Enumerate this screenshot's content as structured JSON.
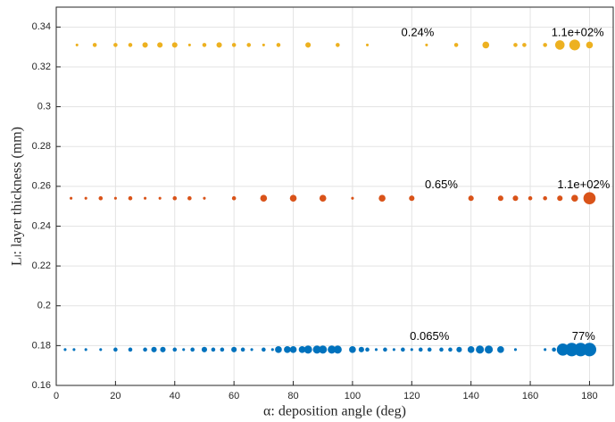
{
  "chart_data": {
    "type": "scatter",
    "xlabel": "α: deposition angle (deg)",
    "ylabel": "Lₗ: layer thickness (mm)",
    "xlim": [
      0,
      188
    ],
    "xticks": [
      0,
      20,
      40,
      60,
      80,
      100,
      120,
      140,
      160,
      180
    ],
    "ylim": [
      0.16,
      0.35
    ],
    "yticks": [
      0.16,
      0.18,
      0.2,
      0.22,
      0.24,
      0.26,
      0.28,
      0.3,
      0.32,
      0.34
    ],
    "grid": true,
    "series": [
      {
        "color": "#edb120",
        "x": [
          7,
          13,
          20,
          25,
          30,
          35,
          40,
          45,
          50,
          55,
          60,
          65,
          70,
          75,
          85,
          95,
          105,
          125,
          135,
          145,
          155,
          158,
          165,
          170,
          175,
          180
        ],
        "y": [
          0.331,
          0.331,
          0.331,
          0.331,
          0.331,
          0.331,
          0.331,
          0.331,
          0.331,
          0.331,
          0.331,
          0.331,
          0.331,
          0.331,
          0.331,
          0.331,
          0.331,
          0.331,
          0.331,
          0.331,
          0.331,
          0.331,
          0.331,
          0.331,
          0.331,
          0.331
        ],
        "sizes": [
          1,
          2,
          2,
          2,
          3,
          3,
          3,
          1,
          2,
          3,
          2,
          2,
          1,
          2,
          3,
          2,
          1,
          1,
          2,
          4,
          2,
          2,
          2,
          6,
          7,
          4
        ]
      },
      {
        "color": "#d95319",
        "x": [
          5,
          10,
          15,
          20,
          25,
          30,
          35,
          40,
          45,
          50,
          60,
          70,
          80,
          90,
          100,
          110,
          120,
          140,
          150,
          155,
          160,
          165,
          170,
          175,
          180
        ],
        "y": [
          0.254,
          0.254,
          0.254,
          0.254,
          0.254,
          0.254,
          0.254,
          0.254,
          0.254,
          0.254,
          0.254,
          0.254,
          0.254,
          0.254,
          0.254,
          0.254,
          0.254,
          0.254,
          0.254,
          0.254,
          0.254,
          0.254,
          0.254,
          0.254,
          0.254
        ],
        "sizes": [
          1,
          1,
          2,
          1,
          2,
          1,
          1,
          2,
          2,
          1,
          2,
          4,
          4,
          4,
          1,
          4,
          3,
          3,
          3,
          3,
          2,
          2,
          3,
          4,
          8
        ]
      },
      {
        "color": "#0072bd",
        "x": [
          3,
          6,
          10,
          15,
          20,
          25,
          30,
          33,
          36,
          40,
          43,
          46,
          50,
          53,
          56,
          60,
          63,
          66,
          70,
          73,
          75,
          78,
          80,
          83,
          85,
          88,
          90,
          93,
          95,
          100,
          103,
          105,
          108,
          111,
          114,
          117,
          120,
          123,
          126,
          130,
          133,
          136,
          140,
          143,
          146,
          150,
          155,
          165,
          168,
          171,
          174,
          177,
          180
        ],
        "y": [
          0.178,
          0.178,
          0.178,
          0.178,
          0.178,
          0.178,
          0.178,
          0.178,
          0.178,
          0.178,
          0.178,
          0.178,
          0.178,
          0.178,
          0.178,
          0.178,
          0.178,
          0.178,
          0.178,
          0.178,
          0.178,
          0.178,
          0.178,
          0.178,
          0.178,
          0.178,
          0.178,
          0.178,
          0.178,
          0.178,
          0.178,
          0.178,
          0.178,
          0.178,
          0.178,
          0.178,
          0.178,
          0.178,
          0.178,
          0.178,
          0.178,
          0.178,
          0.178,
          0.178,
          0.178,
          0.178,
          0.178,
          0.178,
          0.178,
          0.178,
          0.178,
          0.178,
          0.178
        ],
        "sizes": [
          1,
          1,
          1,
          1,
          2,
          2,
          2,
          3,
          3,
          2,
          1,
          2,
          3,
          2,
          2,
          3,
          2,
          1,
          2,
          1,
          4,
          4,
          4,
          4,
          5,
          5,
          5,
          5,
          5,
          4,
          3,
          2,
          1,
          2,
          1,
          2,
          1,
          2,
          2,
          2,
          2,
          3,
          4,
          5,
          5,
          4,
          1,
          1,
          2,
          8,
          9,
          9,
          9
        ]
      }
    ],
    "annotations": [
      {
        "text": "0.24%",
        "x": 122,
        "y": 0.337
      },
      {
        "text": "1.1e+02%",
        "x": 176,
        "y": 0.337
      },
      {
        "text": "0.65%",
        "x": 130,
        "y": 0.2605
      },
      {
        "text": "1.1e+02%",
        "x": 178,
        "y": 0.2605
      },
      {
        "text": "0.065%",
        "x": 126,
        "y": 0.1845
      },
      {
        "text": "77%",
        "x": 178,
        "y": 0.1845
      }
    ]
  }
}
